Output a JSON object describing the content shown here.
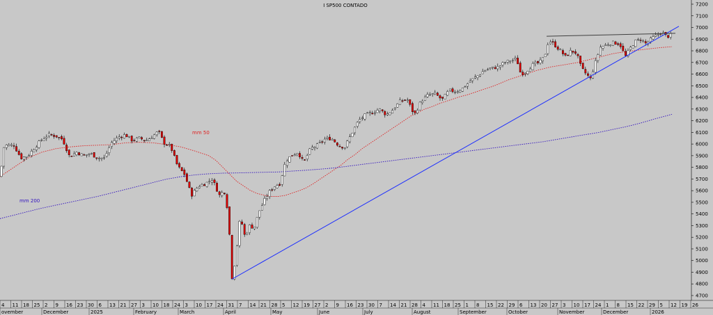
{
  "chart_data": {
    "type": "candlestick",
    "title": "I SP500 CONTADO",
    "y_axis": {
      "position": "right",
      "ylim": [
        4700,
        7200
      ],
      "ticks": [
        4700,
        4800,
        4900,
        5000,
        5100,
        5200,
        5300,
        5400,
        5500,
        5600,
        5700,
        5800,
        5900,
        6000,
        6100,
        6200,
        6300,
        6400,
        6500,
        6600,
        6700,
        6800,
        6900,
        7000,
        7100,
        7200
      ]
    },
    "x_axis": {
      "day_ticks": [
        "4",
        "11",
        "18",
        "25",
        "2",
        "9",
        "16",
        "23",
        "30",
        "6",
        "13",
        "21",
        "27",
        "3",
        "10",
        "18",
        "24",
        "3",
        "10",
        "17",
        "24",
        "31",
        "7",
        "14",
        "21",
        "28",
        "5",
        "12",
        "19",
        "27",
        "2",
        "9",
        "16",
        "23",
        "30",
        "7",
        "14",
        "21",
        "28",
        "4",
        "11",
        "18",
        "25",
        "1",
        "8",
        "15",
        "22",
        "29",
        "6",
        "13",
        "20",
        "27",
        "3",
        "10",
        "17",
        "24",
        "1",
        "8",
        "15",
        "22",
        "29",
        "5",
        "12",
        "19",
        "26"
      ],
      "month_labels": [
        "ovember",
        "December",
        "2025",
        "February",
        "March",
        "April",
        "May",
        "June",
        "July",
        "August",
        "September",
        "October",
        "November",
        "December",
        "2026"
      ]
    },
    "series": [
      {
        "name": "mm 50",
        "color": "#e02020",
        "style": "dotted",
        "points": [
          [
            0,
            5720
          ],
          [
            20,
            5800
          ],
          [
            40,
            5880
          ],
          [
            60,
            5930
          ],
          [
            80,
            5960
          ],
          [
            100,
            5975
          ],
          [
            120,
            5985
          ],
          [
            140,
            5990
          ],
          [
            160,
            5995
          ],
          [
            180,
            6010
          ],
          [
            200,
            6015
          ],
          [
            220,
            6010
          ],
          [
            240,
            5995
          ],
          [
            260,
            5975
          ],
          [
            280,
            5940
          ],
          [
            300,
            5900
          ],
          [
            310,
            5860
          ],
          [
            320,
            5800
          ],
          [
            330,
            5740
          ],
          [
            340,
            5680
          ],
          [
            350,
            5640
          ],
          [
            360,
            5600
          ],
          [
            370,
            5575
          ],
          [
            380,
            5560
          ],
          [
            390,
            5550
          ],
          [
            400,
            5550
          ],
          [
            410,
            5560
          ],
          [
            420,
            5580
          ],
          [
            430,
            5600
          ],
          [
            440,
            5625
          ],
          [
            450,
            5660
          ],
          [
            460,
            5700
          ],
          [
            470,
            5740
          ],
          [
            480,
            5780
          ],
          [
            490,
            5820
          ],
          [
            500,
            5870
          ],
          [
            510,
            5910
          ],
          [
            520,
            5960
          ],
          [
            530,
            6000
          ],
          [
            540,
            6040
          ],
          [
            550,
            6080
          ],
          [
            560,
            6120
          ],
          [
            570,
            6160
          ],
          [
            580,
            6200
          ],
          [
            590,
            6240
          ],
          [
            600,
            6270
          ],
          [
            610,
            6300
          ],
          [
            620,
            6320
          ],
          [
            630,
            6345
          ],
          [
            640,
            6365
          ],
          [
            650,
            6385
          ],
          [
            660,
            6405
          ],
          [
            670,
            6420
          ],
          [
            680,
            6440
          ],
          [
            690,
            6460
          ],
          [
            700,
            6480
          ],
          [
            710,
            6500
          ],
          [
            720,
            6525
          ],
          [
            730,
            6550
          ],
          [
            740,
            6570
          ],
          [
            750,
            6590
          ],
          [
            760,
            6610
          ],
          [
            770,
            6630
          ],
          [
            780,
            6645
          ],
          [
            790,
            6660
          ],
          [
            800,
            6670
          ],
          [
            810,
            6680
          ],
          [
            820,
            6690
          ],
          [
            830,
            6700
          ],
          [
            840,
            6715
          ],
          [
            850,
            6730
          ],
          [
            860,
            6745
          ],
          [
            870,
            6760
          ],
          [
            880,
            6775
          ],
          [
            890,
            6785
          ],
          [
            900,
            6795
          ],
          [
            910,
            6800
          ],
          [
            920,
            6808
          ],
          [
            930,
            6815
          ],
          [
            940,
            6822
          ],
          [
            950,
            6828
          ],
          [
            965,
            6835
          ]
        ]
      },
      {
        "name": "mm 200",
        "color": "#3010c0",
        "style": "dotted",
        "points": [
          [
            0,
            5360
          ],
          [
            20,
            5390
          ],
          [
            40,
            5420
          ],
          [
            60,
            5450
          ],
          [
            80,
            5475
          ],
          [
            100,
            5500
          ],
          [
            120,
            5525
          ],
          [
            140,
            5550
          ],
          [
            160,
            5580
          ],
          [
            180,
            5610
          ],
          [
            200,
            5640
          ],
          [
            220,
            5670
          ],
          [
            240,
            5700
          ],
          [
            260,
            5720
          ],
          [
            280,
            5735
          ],
          [
            300,
            5745
          ],
          [
            320,
            5750
          ],
          [
            340,
            5752
          ],
          [
            360,
            5755
          ],
          [
            380,
            5758
          ],
          [
            400,
            5760
          ],
          [
            420,
            5768
          ],
          [
            440,
            5775
          ],
          [
            460,
            5785
          ],
          [
            480,
            5795
          ],
          [
            500,
            5810
          ],
          [
            520,
            5825
          ],
          [
            540,
            5840
          ],
          [
            560,
            5855
          ],
          [
            580,
            5870
          ],
          [
            600,
            5885
          ],
          [
            620,
            5900
          ],
          [
            640,
            5915
          ],
          [
            660,
            5930
          ],
          [
            680,
            5945
          ],
          [
            700,
            5960
          ],
          [
            720,
            5975
          ],
          [
            740,
            5990
          ],
          [
            760,
            6005
          ],
          [
            780,
            6020
          ],
          [
            800,
            6040
          ],
          [
            820,
            6060
          ],
          [
            840,
            6080
          ],
          [
            860,
            6100
          ],
          [
            880,
            6125
          ],
          [
            900,
            6150
          ],
          [
            920,
            6180
          ],
          [
            940,
            6215
          ],
          [
            965,
            6255
          ]
        ]
      },
      {
        "name": "trendline",
        "color": "#1a2cff",
        "style": "solid",
        "points": [
          [
            333,
            4840
          ],
          [
            975,
            7010
          ]
        ]
      },
      {
        "name": "resistance",
        "color": "#404040",
        "style": "solid",
        "points": [
          [
            785,
            6925
          ],
          [
            970,
            6950
          ]
        ]
      }
    ],
    "annotations": [
      "mm 50",
      "mm 200"
    ]
  }
}
